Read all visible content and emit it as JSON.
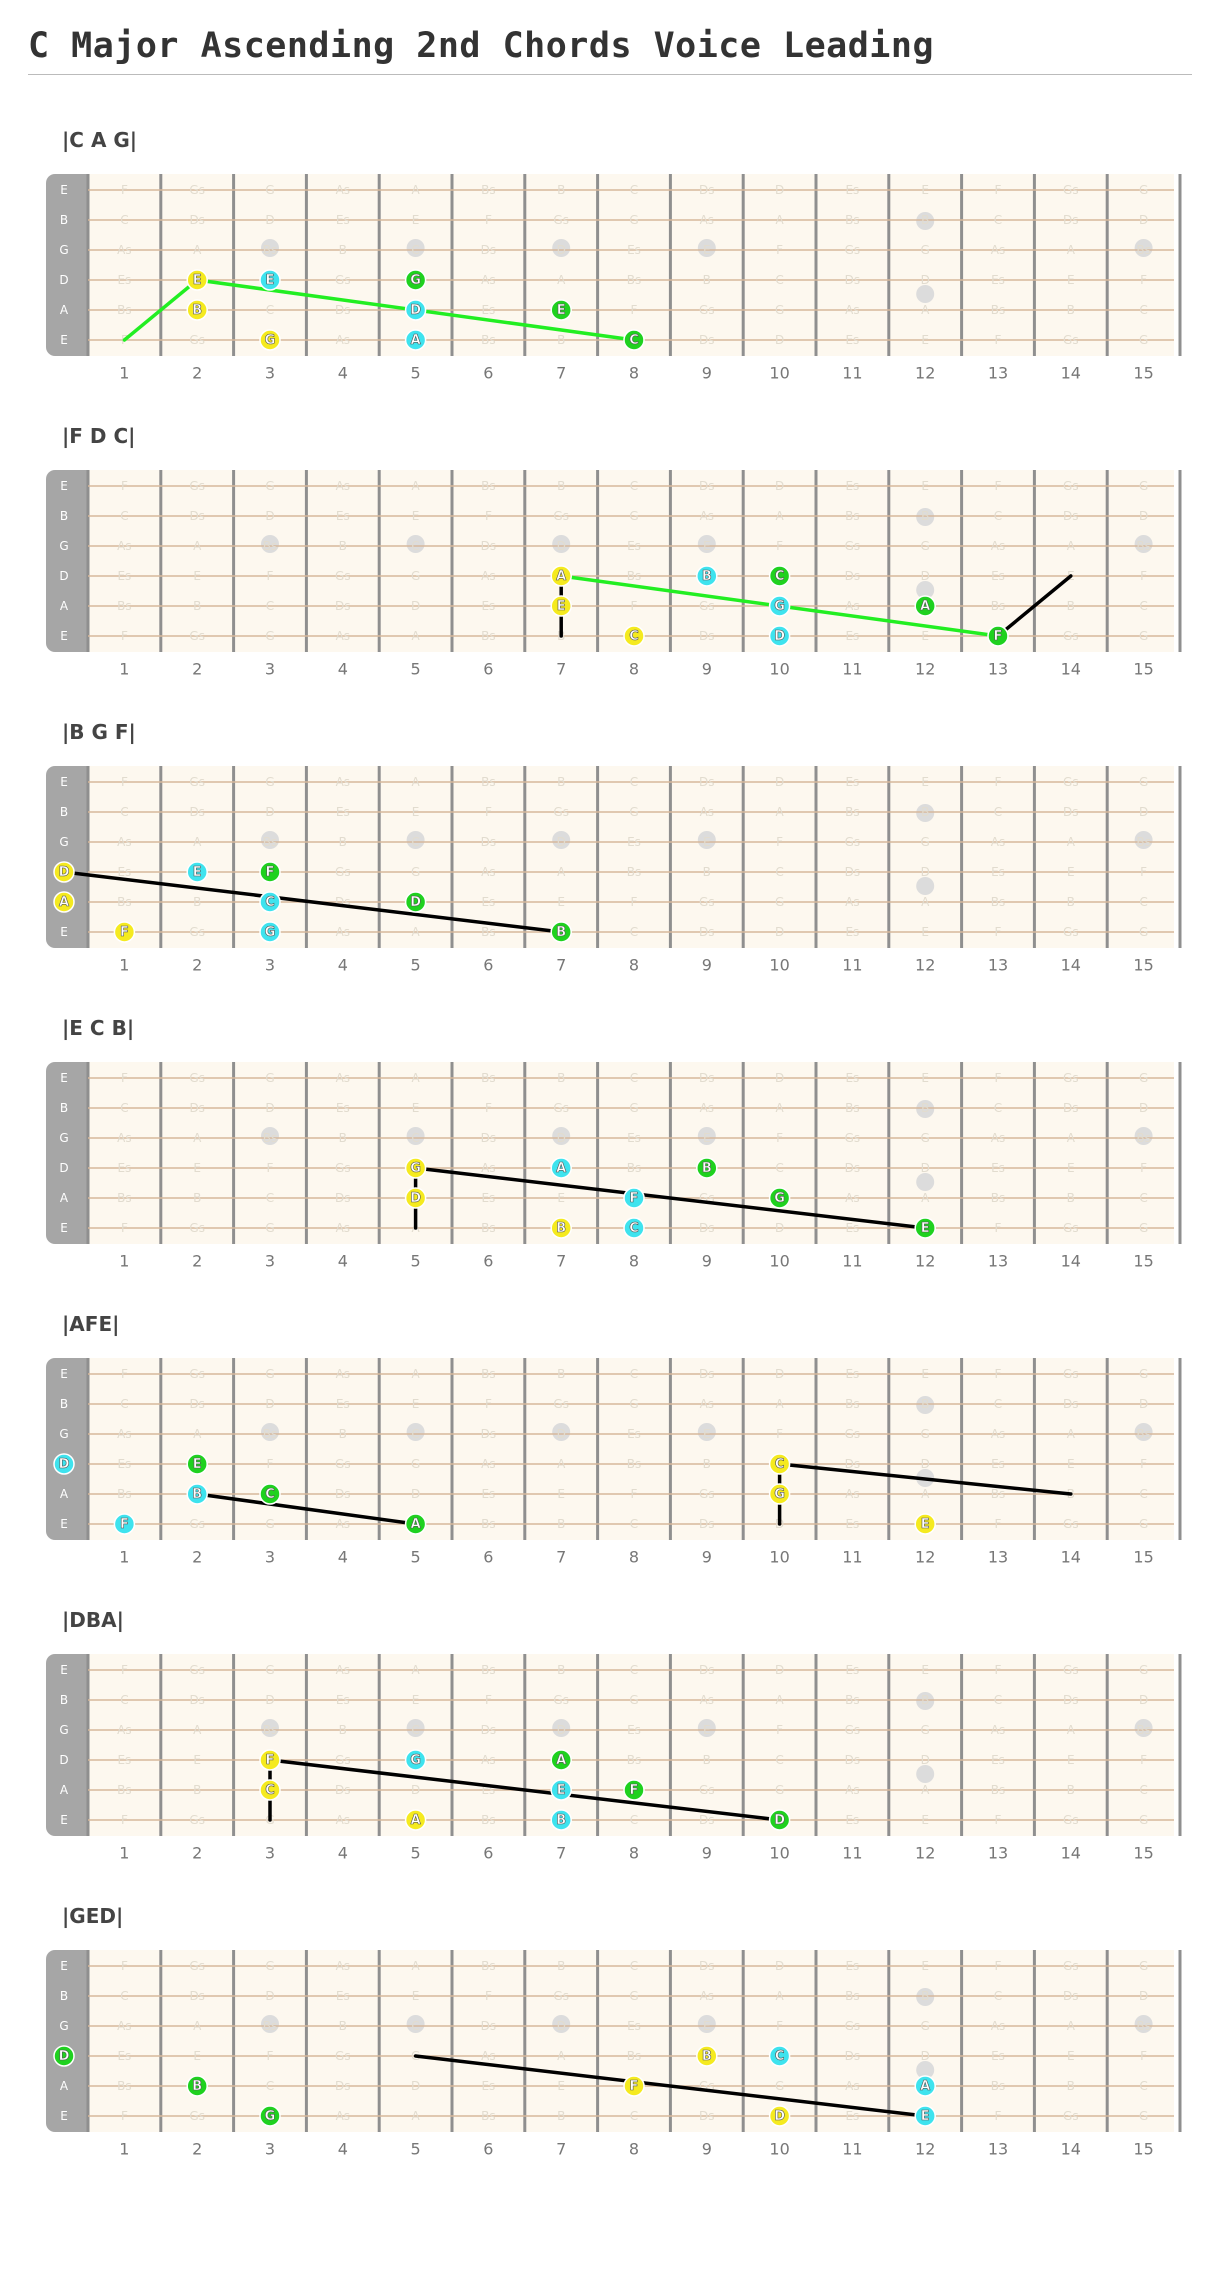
{
  "title": "C Major Ascending 2nd Chords Voice Leading",
  "colors": {
    "board": "#fdf8ef",
    "nut": "#a6a6a6",
    "fret": "#8f8f8f",
    "string": "#d7b89c",
    "marker": "#dcdcdc",
    "yellow": "#f5ea1f",
    "cyan": "#3ee3ee",
    "green": "#1fd11f",
    "line_green": "#22ee22",
    "line_black": "#000000"
  },
  "string_names": [
    "E",
    "B",
    "G",
    "D",
    "A",
    "E"
  ],
  "fret_numbers": [
    "1",
    "2",
    "3",
    "4",
    "5",
    "6",
    "7",
    "8",
    "9",
    "10",
    "11",
    "12",
    "13",
    "14",
    "15"
  ],
  "background_notes": [
    [
      "E",
      "F",
      "Gs",
      "G",
      "As",
      "A",
      "Bs",
      "B",
      "C",
      "Ds",
      "D",
      "Es",
      "E",
      "F",
      "Gs",
      "G"
    ],
    [
      "B",
      "C",
      "Ds",
      "D",
      "Es",
      "E",
      "F",
      "Gs",
      "G",
      "As",
      "A",
      "Bs",
      "B",
      "C",
      "Ds",
      "D"
    ],
    [
      "G",
      "As",
      "A",
      "Bs",
      "B",
      "C",
      "Ds",
      "D",
      "Es",
      "E",
      "F",
      "Gs",
      "G",
      "As",
      "A",
      "Bs"
    ],
    [
      "D",
      "Es",
      "E",
      "F",
      "Gs",
      "G",
      "As",
      "A",
      "Bs",
      "B",
      "C",
      "Ds",
      "D",
      "Es",
      "E",
      "F"
    ],
    [
      "A",
      "Bs",
      "B",
      "C",
      "Ds",
      "D",
      "Es",
      "E",
      "F",
      "Gs",
      "G",
      "As",
      "A",
      "Bs",
      "B",
      "C"
    ],
    [
      "E",
      "F",
      "Gs",
      "G",
      "As",
      "A",
      "Bs",
      "B",
      "C",
      "Ds",
      "D",
      "Es",
      "E",
      "F",
      "Gs",
      "G"
    ]
  ],
  "diagrams": [
    {
      "label": "|C A G|",
      "dots": [
        {
          "s": 3,
          "f": 2,
          "t": "E",
          "c": "yellow"
        },
        {
          "s": 4,
          "f": 2,
          "t": "B",
          "c": "yellow"
        },
        {
          "s": 5,
          "f": 3,
          "t": "G",
          "c": "yellow"
        },
        {
          "s": 3,
          "f": 3,
          "t": "E",
          "c": "cyan"
        },
        {
          "s": 4,
          "f": 5,
          "t": "D",
          "c": "cyan"
        },
        {
          "s": 5,
          "f": 5,
          "t": "A",
          "c": "cyan"
        },
        {
          "s": 3,
          "f": 5,
          "t": "G",
          "c": "green"
        },
        {
          "s": 4,
          "f": 7,
          "t": "E",
          "c": "green"
        },
        {
          "s": 5,
          "f": 8,
          "t": "C",
          "c": "green"
        }
      ],
      "lines": [
        {
          "color": "line_green",
          "pts": [
            [
              5,
              1
            ],
            [
              3,
              2
            ],
            [
              5,
              8
            ]
          ]
        }
      ]
    },
    {
      "label": "|F D C|",
      "dots": [
        {
          "s": 3,
          "f": 7,
          "t": "A",
          "c": "yellow"
        },
        {
          "s": 4,
          "f": 7,
          "t": "E",
          "c": "yellow"
        },
        {
          "s": 5,
          "f": 8,
          "t": "C",
          "c": "yellow"
        },
        {
          "s": 3,
          "f": 9,
          "t": "B",
          "c": "cyan"
        },
        {
          "s": 4,
          "f": 10,
          "t": "G",
          "c": "cyan"
        },
        {
          "s": 5,
          "f": 10,
          "t": "D",
          "c": "cyan"
        },
        {
          "s": 3,
          "f": 10,
          "t": "C",
          "c": "green"
        },
        {
          "s": 4,
          "f": 12,
          "t": "A",
          "c": "green"
        },
        {
          "s": 5,
          "f": 13,
          "t": "F",
          "c": "green"
        }
      ],
      "lines": [
        {
          "color": "line_black",
          "pts": [
            [
              3,
              7
            ],
            [
              5,
              7
            ]
          ]
        },
        {
          "color": "line_green",
          "pts": [
            [
              3,
              7
            ],
            [
              5,
              13
            ]
          ]
        },
        {
          "color": "line_black",
          "pts": [
            [
              5,
              13
            ],
            [
              3,
              14
            ]
          ]
        }
      ]
    },
    {
      "label": "|B G F|",
      "dots": [
        {
          "s": 3,
          "f": 0,
          "t": "D",
          "c": "yellow"
        },
        {
          "s": 4,
          "f": 0,
          "t": "A",
          "c": "yellow"
        },
        {
          "s": 5,
          "f": 1,
          "t": "F",
          "c": "yellow"
        },
        {
          "s": 3,
          "f": 2,
          "t": "E",
          "c": "cyan"
        },
        {
          "s": 4,
          "f": 3,
          "t": "C",
          "c": "cyan"
        },
        {
          "s": 5,
          "f": 3,
          "t": "G",
          "c": "cyan"
        },
        {
          "s": 3,
          "f": 3,
          "t": "F",
          "c": "green"
        },
        {
          "s": 4,
          "f": 5,
          "t": "D",
          "c": "green"
        },
        {
          "s": 5,
          "f": 7,
          "t": "B",
          "c": "green"
        }
      ],
      "lines": [
        {
          "color": "line_black",
          "pts": [
            [
              3,
              0
            ],
            [
              5,
              7
            ]
          ]
        }
      ]
    },
    {
      "label": "|E C B|",
      "dots": [
        {
          "s": 3,
          "f": 5,
          "t": "G",
          "c": "yellow"
        },
        {
          "s": 4,
          "f": 5,
          "t": "D",
          "c": "yellow"
        },
        {
          "s": 5,
          "f": 7,
          "t": "B",
          "c": "yellow"
        },
        {
          "s": 3,
          "f": 7,
          "t": "A",
          "c": "cyan"
        },
        {
          "s": 4,
          "f": 8,
          "t": "F",
          "c": "cyan"
        },
        {
          "s": 5,
          "f": 8,
          "t": "C",
          "c": "cyan"
        },
        {
          "s": 3,
          "f": 9,
          "t": "B",
          "c": "green"
        },
        {
          "s": 4,
          "f": 10,
          "t": "G",
          "c": "green"
        },
        {
          "s": 5,
          "f": 12,
          "t": "E",
          "c": "green"
        }
      ],
      "lines": [
        {
          "color": "line_black",
          "pts": [
            [
              3,
              5
            ],
            [
              5,
              5
            ]
          ]
        },
        {
          "color": "line_black",
          "pts": [
            [
              3,
              5
            ],
            [
              5,
              12
            ]
          ]
        }
      ]
    },
    {
      "label": "|AFE|",
      "dots": [
        {
          "s": 3,
          "f": 0,
          "t": "D",
          "c": "cyan"
        },
        {
          "s": 4,
          "f": 2,
          "t": "B",
          "c": "cyan"
        },
        {
          "s": 5,
          "f": 1,
          "t": "F",
          "c": "cyan"
        },
        {
          "s": 3,
          "f": 2,
          "t": "E",
          "c": "green"
        },
        {
          "s": 4,
          "f": 3,
          "t": "C",
          "c": "green"
        },
        {
          "s": 5,
          "f": 5,
          "t": "A",
          "c": "green"
        },
        {
          "s": 3,
          "f": 10,
          "t": "C",
          "c": "yellow"
        },
        {
          "s": 4,
          "f": 10,
          "t": "G",
          "c": "yellow"
        },
        {
          "s": 5,
          "f": 12,
          "t": "E",
          "c": "yellow"
        }
      ],
      "lines": [
        {
          "color": "line_black",
          "pts": [
            [
              4,
              2
            ],
            [
              5,
              5
            ]
          ]
        },
        {
          "color": "line_black",
          "pts": [
            [
              3,
              10
            ],
            [
              5,
              10
            ]
          ]
        },
        {
          "color": "line_black",
          "pts": [
            [
              3,
              10
            ],
            [
              4,
              14
            ]
          ]
        }
      ]
    },
    {
      "label": "|DBA|",
      "dots": [
        {
          "s": 3,
          "f": 3,
          "t": "F",
          "c": "yellow"
        },
        {
          "s": 4,
          "f": 3,
          "t": "C",
          "c": "yellow"
        },
        {
          "s": 5,
          "f": 5,
          "t": "A",
          "c": "yellow"
        },
        {
          "s": 3,
          "f": 5,
          "t": "G",
          "c": "cyan"
        },
        {
          "s": 4,
          "f": 7,
          "t": "E",
          "c": "cyan"
        },
        {
          "s": 5,
          "f": 7,
          "t": "B",
          "c": "cyan"
        },
        {
          "s": 3,
          "f": 7,
          "t": "A",
          "c": "green"
        },
        {
          "s": 4,
          "f": 8,
          "t": "F",
          "c": "green"
        },
        {
          "s": 5,
          "f": 10,
          "t": "D",
          "c": "green"
        }
      ],
      "lines": [
        {
          "color": "line_black",
          "pts": [
            [
              3,
              3
            ],
            [
              5,
              3
            ]
          ]
        },
        {
          "color": "line_black",
          "pts": [
            [
              3,
              3
            ],
            [
              5,
              10
            ]
          ]
        }
      ]
    },
    {
      "label": "|GED|",
      "dots": [
        {
          "s": 3,
          "f": 0,
          "t": "D",
          "c": "green"
        },
        {
          "s": 4,
          "f": 2,
          "t": "B",
          "c": "green"
        },
        {
          "s": 5,
          "f": 3,
          "t": "G",
          "c": "green"
        },
        {
          "s": 3,
          "f": 9,
          "t": "B",
          "c": "yellow"
        },
        {
          "s": 4,
          "f": 8,
          "t": "F",
          "c": "yellow"
        },
        {
          "s": 5,
          "f": 10,
          "t": "D",
          "c": "yellow"
        },
        {
          "s": 3,
          "f": 10,
          "t": "C",
          "c": "cyan"
        },
        {
          "s": 4,
          "f": 12,
          "t": "A",
          "c": "cyan"
        },
        {
          "s": 5,
          "f": 12,
          "t": "E",
          "c": "cyan"
        }
      ],
      "lines": [
        {
          "color": "line_black",
          "pts": [
            [
              3,
              5
            ],
            [
              5,
              12
            ]
          ]
        }
      ]
    }
  ]
}
